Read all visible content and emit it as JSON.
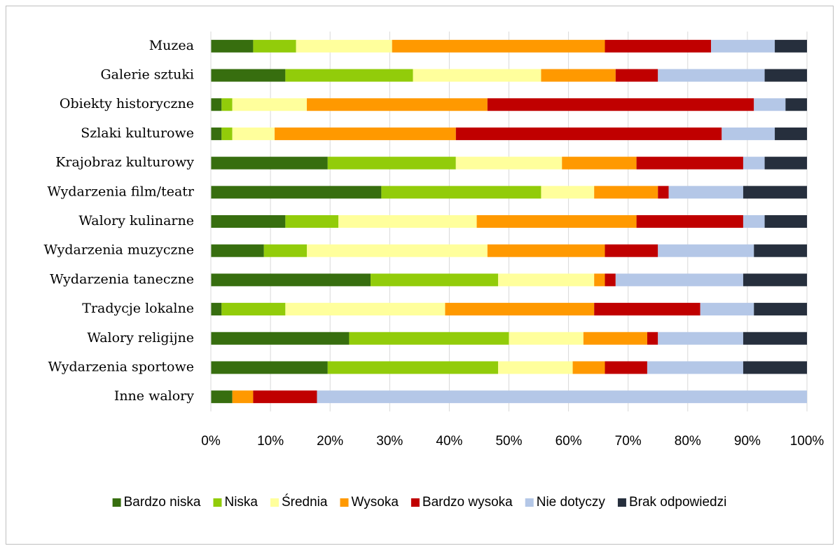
{
  "chart_data": {
    "type": "stacked_barh",
    "categories": [
      "Muzea",
      "Galerie sztuki",
      "Obiekty historyczne",
      "Szlaki kulturowe",
      "Krajobraz kulturowy",
      "Wydarzenia film/teatr",
      "Walory kulinarne",
      "Wydarzenia muzyczne",
      "Wydarzenia taneczne",
      "Tradycje lokalne",
      "Walory religijne",
      "Wydarzenia sportowe",
      "Inne walory"
    ],
    "series": [
      {
        "name": "Bardzo niska",
        "color": "#376e0f",
        "values": [
          7.1,
          12.5,
          1.8,
          1.8,
          19.6,
          28.6,
          12.5,
          8.9,
          26.8,
          1.8,
          23.2,
          19.6,
          3.6
        ]
      },
      {
        "name": "Niska",
        "color": "#92cc0a",
        "values": [
          7.2,
          21.4,
          1.8,
          1.8,
          21.5,
          26.8,
          8.9,
          7.2,
          21.4,
          10.7,
          26.8,
          28.6,
          0
        ]
      },
      {
        "name": "Średnia",
        "color": "#ffff9c",
        "values": [
          16.1,
          21.5,
          12.5,
          7.1,
          17.8,
          8.9,
          23.2,
          30.3,
          16.1,
          26.8,
          12.5,
          12.5,
          0
        ]
      },
      {
        "name": "Wysoka",
        "color": "#ff9900",
        "values": [
          35.7,
          12.5,
          30.3,
          30.4,
          12.5,
          10.7,
          26.8,
          19.7,
          1.8,
          25.0,
          10.7,
          5.4,
          3.5
        ]
      },
      {
        "name": "Bardzo wysoka",
        "color": "#c00000",
        "values": [
          17.8,
          7.1,
          44.7,
          44.6,
          17.9,
          1.8,
          17.9,
          8.9,
          1.8,
          17.8,
          1.8,
          7.1,
          10.7
        ]
      },
      {
        "name": "Nie dotyczy",
        "color": "#b4c7e7",
        "values": [
          10.7,
          17.9,
          5.3,
          8.9,
          3.6,
          12.5,
          3.6,
          16.1,
          21.4,
          9.0,
          14.3,
          16.1,
          82.2
        ]
      },
      {
        "name": "Brak odpowiedzi",
        "color": "#262f3d",
        "values": [
          5.4,
          7.1,
          3.6,
          5.4,
          7.1,
          10.7,
          7.1,
          8.9,
          10.7,
          8.9,
          10.7,
          10.7,
          0
        ]
      }
    ],
    "xlim": [
      0,
      100
    ],
    "xticks": [
      {
        "value": 0,
        "label": "0%"
      },
      {
        "value": 10,
        "label": "10%"
      },
      {
        "value": 20,
        "label": "20%"
      },
      {
        "value": 30,
        "label": "30%"
      },
      {
        "value": 40,
        "label": "40%"
      },
      {
        "value": 50,
        "label": "50%"
      },
      {
        "value": 60,
        "label": "60%"
      },
      {
        "value": 70,
        "label": "70%"
      },
      {
        "value": 80,
        "label": "80%"
      },
      {
        "value": 90,
        "label": "90%"
      },
      {
        "value": 100,
        "label": "100%"
      }
    ],
    "grid": true,
    "legend": "bottom"
  }
}
